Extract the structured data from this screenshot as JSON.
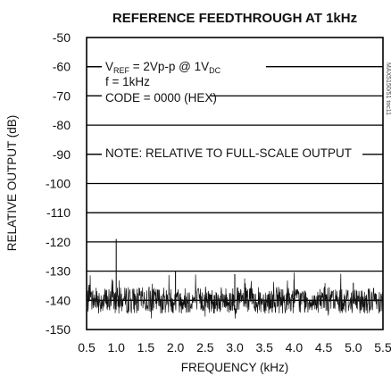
{
  "chart_data": {
    "type": "line",
    "title": "REFERENCE FEEDTHROUGH AT 1kHz",
    "xlabel": "FREQUENCY (kHz)",
    "ylabel": "RELATIVE OUTPUT (dB)",
    "xlim": [
      0.5,
      5.5
    ],
    "ylim": [
      -150,
      -50
    ],
    "x_ticks": [
      "0.5",
      "1.0",
      "1.5",
      "2.0",
      "2.5",
      "3.0",
      "3.5",
      "4.0",
      "4.5",
      "5.0",
      "5.5"
    ],
    "y_ticks": [
      "-50",
      "-60",
      "-70",
      "-80",
      "-90",
      "-100",
      "-110",
      "-120",
      "-130",
      "-140",
      "-150"
    ],
    "grid": true,
    "annotations": {
      "vref_main": "V",
      "vref_sub": "REF",
      "vref_rest": " = 2Vp-p @ 1V",
      "vref_dc": "DC",
      "freq": "f = 1kHz",
      "code": "CODE = 0000 (HEX)",
      "note": "NOTE: RELATIVE TO FULL-SCALE OUTPUT"
    },
    "side_label": "MAX5150/51 toc11",
    "noise_floor_db": -140,
    "spurs": [
      {
        "x": 1.0,
        "y": -119
      },
      {
        "x": 2.0,
        "y": -130
      },
      {
        "x": 3.0,
        "y": -131
      },
      {
        "x": 4.0,
        "y": -133
      },
      {
        "x": 5.0,
        "y": -134
      }
    ]
  }
}
